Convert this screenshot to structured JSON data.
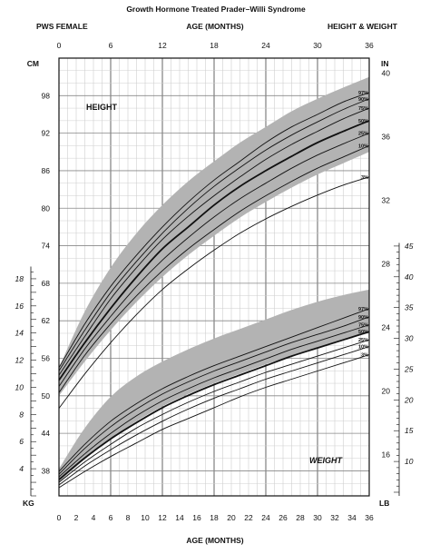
{
  "header": {
    "title": "Growth Hormone Treated Prader–Willi Syndrome",
    "left": "PWS FEMALE",
    "center": "AGE (MONTHS)",
    "right": "HEIGHT & WEIGHT"
  },
  "chart_data": {
    "type": "line",
    "xlabel": "AGE (MONTHS)",
    "xlim": [
      0,
      36
    ],
    "x_top_ticks": [
      0,
      6,
      12,
      18,
      24,
      30,
      36
    ],
    "x_bottom_ticks": [
      0,
      2,
      4,
      6,
      8,
      10,
      12,
      14,
      16,
      18,
      20,
      22,
      24,
      26,
      28,
      30,
      32,
      34,
      36
    ],
    "height_label": "HEIGHT",
    "weight_label": "WEIGHT",
    "axes": {
      "cm": {
        "label": "CM",
        "ticks": [
          38,
          44,
          50,
          56,
          62,
          68,
          74,
          80,
          86,
          92,
          98
        ],
        "lim": [
          34,
          104
        ]
      },
      "in": {
        "label": "IN",
        "ticks": [
          16,
          20,
          24,
          28,
          32,
          36,
          40
        ]
      },
      "kg": {
        "label": "KG",
        "ticks": [
          4,
          6,
          8,
          10,
          12,
          14,
          16,
          18
        ],
        "lim": [
          2,
          19
        ]
      },
      "lb": {
        "label": "LB",
        "ticks": [
          10,
          15,
          20,
          25,
          30,
          35,
          40,
          45
        ]
      }
    },
    "percentiles": [
      "97%",
      "90%",
      "75%",
      "50%",
      "25%",
      "10%",
      "3%"
    ],
    "x": [
      0,
      3,
      6,
      9,
      12,
      15,
      18,
      21,
      24,
      27,
      30,
      33,
      36
    ],
    "height_series": [
      {
        "name": "97%",
        "values": [
          54.5,
          61.5,
          67.5,
          72.5,
          77,
          81,
          84.5,
          87.5,
          90.5,
          93,
          95,
          97,
          98.5
        ]
      },
      {
        "name": "90%",
        "values": [
          54,
          60.5,
          66.5,
          71.5,
          76,
          80,
          83.5,
          86.5,
          89.3,
          91.7,
          93.8,
          95.8,
          97.5
        ]
      },
      {
        "name": "75%",
        "values": [
          53.3,
          59.5,
          65.5,
          70.5,
          75,
          78.7,
          82,
          85,
          87.8,
          90.2,
          92.3,
          94.3,
          96
        ]
      },
      {
        "name": "50%",
        "values": [
          52.5,
          58.5,
          64,
          69,
          73.5,
          77,
          80.5,
          83.5,
          86,
          88.3,
          90.5,
          92.3,
          94
        ]
      },
      {
        "name": "25%",
        "values": [
          51.5,
          57.5,
          62.7,
          67.5,
          71.7,
          75.3,
          78.6,
          81.5,
          84,
          86.4,
          88.5,
          90.3,
          92
        ]
      },
      {
        "name": "10%",
        "values": [
          50.5,
          56.5,
          61.5,
          66,
          70,
          73.5,
          76.6,
          79.5,
          82,
          84.3,
          86.4,
          88.2,
          90
        ]
      },
      {
        "name": "3%",
        "values": [
          48,
          53.5,
          58.5,
          63,
          67,
          70.3,
          73.3,
          76,
          78.3,
          80.3,
          82.1,
          83.7,
          85
        ]
      }
    ],
    "height_band": {
      "upper": [
        54.5,
        63.5,
        70.5,
        76,
        80.5,
        84.3,
        87.5,
        90.5,
        93,
        95.5,
        97.5,
        99.3,
        101
      ],
      "lower": [
        50,
        55.5,
        60.5,
        65,
        69,
        72.5,
        75.6,
        78.5,
        81,
        83.3,
        85.4,
        87.2,
        89
      ]
    },
    "weight_series": [
      {
        "name": "97%",
        "values": [
          3.8,
          5.8,
          7.5,
          8.8,
          9.9,
          10.8,
          11.6,
          12.3,
          13,
          13.7,
          14.4,
          15.1,
          15.8
        ]
      },
      {
        "name": "90%",
        "values": [
          3.6,
          5.5,
          7.1,
          8.4,
          9.5,
          10.4,
          11.2,
          11.9,
          12.6,
          13.3,
          13.9,
          14.5,
          15.2
        ]
      },
      {
        "name": "75%",
        "values": [
          3.4,
          5.1,
          6.6,
          7.9,
          9,
          9.9,
          10.7,
          11.4,
          12.1,
          12.8,
          13.4,
          14,
          14.6
        ]
      },
      {
        "name": "50%",
        "values": [
          3.2,
          4.8,
          6.2,
          7.4,
          8.5,
          9.4,
          10.2,
          10.9,
          11.6,
          12.3,
          12.9,
          13.5,
          14.1
        ]
      },
      {
        "name": "25%",
        "values": [
          3,
          4.5,
          5.8,
          7,
          8,
          8.9,
          9.7,
          10.4,
          11.1,
          11.7,
          12.3,
          12.9,
          13.5
        ]
      },
      {
        "name": "10%",
        "values": [
          2.8,
          4.2,
          5.4,
          6.5,
          7.5,
          8.4,
          9.2,
          9.9,
          10.6,
          11.2,
          11.8,
          12.4,
          13
        ]
      },
      {
        "name": "3%",
        "values": [
          2.6,
          3.8,
          4.9,
          5.9,
          6.9,
          7.7,
          8.5,
          9.3,
          10,
          10.6,
          11.2,
          11.8,
          12.4
        ]
      }
    ],
    "weight_band": {
      "upper": [
        4,
        7,
        9.3,
        10.8,
        11.9,
        12.8,
        13.6,
        14.3,
        15,
        15.7,
        16.3,
        16.8,
        17.2
      ],
      "lower": [
        3,
        4.7,
        6.2,
        7.5,
        8.6,
        9.5,
        10.3,
        11,
        11.7,
        12.3,
        12.9,
        13.5,
        14
      ]
    }
  }
}
